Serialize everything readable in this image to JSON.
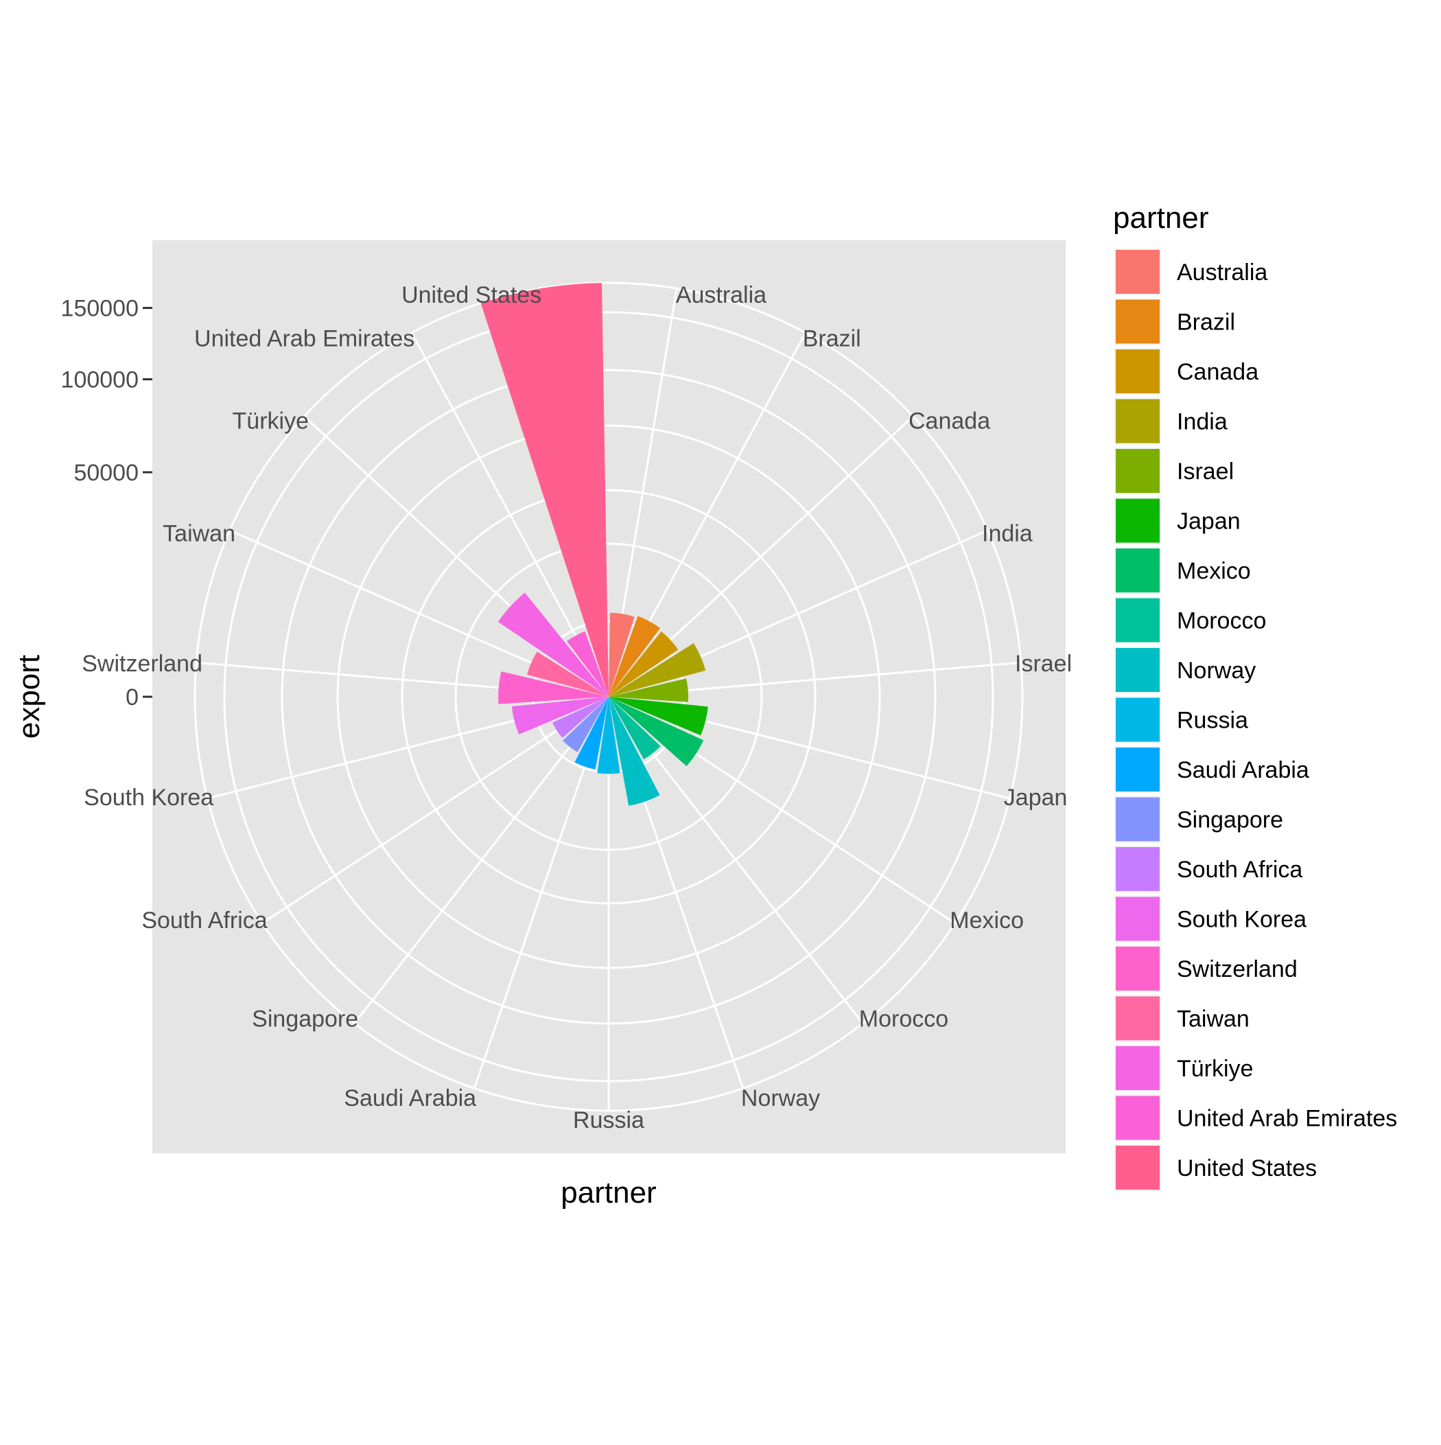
{
  "chart_data": {
    "type": "bar",
    "coord": "polar",
    "xlabel": "partner",
    "ylabel": "export",
    "y_scale": "sqrt",
    "ylim": [
      0,
      170000
    ],
    "y_ticks": [
      0,
      50000,
      100000,
      150000
    ],
    "y_tick_labels": [
      "0",
      "50000",
      "100000",
      "150000"
    ],
    "grid": true,
    "legend": {
      "title": "partner",
      "position": "right"
    },
    "colors": {
      "panel_bg": "#e5e5e5",
      "grid": "#ffffff",
      "page_bg": "#ffffff"
    },
    "categories": [
      "Australia",
      "Brazil",
      "Canada",
      "India",
      "Israel",
      "Japan",
      "Mexico",
      "Morocco",
      "Norway",
      "Russia",
      "Saudi Arabia",
      "Singapore",
      "South Africa",
      "South Korea",
      "Switzerland",
      "Taiwan",
      "Türkiye",
      "United Arab Emirates",
      "United States"
    ],
    "series": [
      {
        "values": [
          7000,
          7300,
          7000,
          10000,
          6300,
          9900,
          10800,
          5100,
          12200,
          5900,
          5400,
          4000,
          3800,
          9400,
          12100,
          7100,
          17700,
          4800,
          170000
        ],
        "colors": [
          "#F8766D",
          "#E68613",
          "#CD9600",
          "#ABA300",
          "#7CAE00",
          "#0CB702",
          "#00BE67",
          "#00C19A",
          "#00BFC4",
          "#00B8E7",
          "#00A9FF",
          "#8494FF",
          "#C77CFF",
          "#ED68ED",
          "#FF61CC",
          "#FF68A1",
          "#F564E3",
          "#FB61D7",
          "#FF5F8F"
        ]
      }
    ]
  }
}
